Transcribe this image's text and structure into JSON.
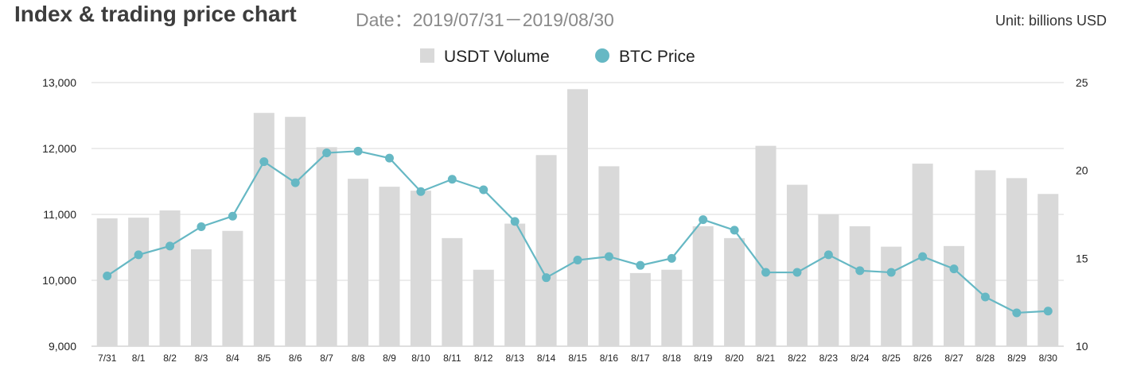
{
  "title": "Index & trading price chart",
  "date_range": "Date：2019/07/31－2019/08/30",
  "unit": "Unit: billions USD",
  "chart_data": {
    "type": "bar",
    "categories": [
      "7/31",
      "8/1",
      "8/2",
      "8/3",
      "8/4",
      "8/5",
      "8/6",
      "8/7",
      "8/8",
      "8/9",
      "8/10",
      "8/11",
      "8/12",
      "8/13",
      "8/14",
      "8/15",
      "8/16",
      "8/17",
      "8/18",
      "8/19",
      "8/20",
      "8/21",
      "8/22",
      "8/23",
      "8/24",
      "8/25",
      "8/26",
      "8/27",
      "8/28",
      "8/29",
      "8/30"
    ],
    "series": [
      {
        "name": "USDT Volume",
        "type": "bar",
        "axis": "left",
        "color": "#d9d9d9",
        "values": [
          10940,
          10950,
          11060,
          10470,
          10750,
          12540,
          12480,
          12020,
          11540,
          11420,
          11360,
          10640,
          10160,
          10860,
          11900,
          12900,
          11730,
          10110,
          10160,
          10820,
          10640,
          12040,
          11450,
          11000,
          10820,
          10510,
          11770,
          10520,
          11670,
          11550,
          11310
        ]
      },
      {
        "name": "BTC Price",
        "type": "line",
        "axis": "right",
        "color": "#66b8c4",
        "values": [
          14.0,
          15.2,
          15.7,
          16.8,
          17.4,
          20.5,
          19.3,
          21.0,
          21.1,
          20.7,
          18.8,
          19.5,
          18.9,
          17.1,
          13.9,
          14.9,
          15.1,
          14.6,
          15.0,
          17.2,
          16.6,
          14.2,
          14.2,
          15.2,
          14.3,
          14.2,
          15.1,
          14.4,
          12.8,
          11.9,
          12.0
        ]
      }
    ],
    "y_left": {
      "ylim": [
        9000,
        13000
      ],
      "ticks": [
        "9,000",
        "10,000",
        "11,000",
        "12,000",
        "13,000"
      ]
    },
    "y_right": {
      "ylim": [
        10,
        25
      ],
      "ticks": [
        "10",
        "15",
        "20",
        "25"
      ]
    },
    "grid": true,
    "legend_placement": "top-center"
  }
}
